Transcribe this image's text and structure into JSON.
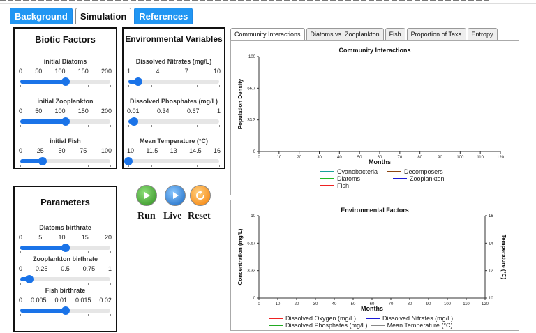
{
  "nav": {
    "tabs": [
      "Background",
      "Simulation",
      "References"
    ]
  },
  "biotic": {
    "title": "Biotic Factors",
    "sliders": [
      {
        "label": "initial Diatoms",
        "ticks": [
          "0",
          "50",
          "100",
          "150",
          "200"
        ],
        "value": 0.5
      },
      {
        "label": "initial Zooplankton",
        "ticks": [
          "0",
          "50",
          "100",
          "150",
          "200"
        ],
        "value": 0.5
      },
      {
        "label": "initial Fish",
        "ticks": [
          "0",
          "25",
          "50",
          "75",
          "100"
        ],
        "value": 0.25
      }
    ]
  },
  "env": {
    "title": "Environmental Variables",
    "sliders": [
      {
        "label": "Dissolved Nitrates (mg/L)",
        "ticks": [
          "1",
          "4",
          "7",
          "10"
        ],
        "value": 0.11
      },
      {
        "label": "Dissolved Phosphates (mg/L)",
        "ticks": [
          "0.01",
          "0.34",
          "0.67",
          "1"
        ],
        "value": 0.06
      },
      {
        "label": "Mean Temperature (°C)",
        "ticks": [
          "10",
          "11.5",
          "13",
          "14.5",
          "16"
        ],
        "value": 0.0
      }
    ]
  },
  "params": {
    "title": "Parameters",
    "sliders": [
      {
        "label": "Diatoms birthrate",
        "ticks": [
          "0",
          "5",
          "10",
          "15",
          "20"
        ],
        "value": 0.5
      },
      {
        "label": "Zooplankton birthrate",
        "ticks": [
          "0",
          "0.25",
          "0.5",
          "0.75",
          "1"
        ],
        "value": 0.1
      },
      {
        "label": "Fish birthrate",
        "ticks": [
          "0",
          "0.005",
          "0.01",
          "0.015",
          "0.02"
        ],
        "value": 0.5
      }
    ]
  },
  "controls": {
    "run": "Run",
    "live": "Live",
    "reset": "Reset"
  },
  "chart_tabs": [
    "Community Interactions",
    "Diatoms vs. Zooplankton",
    "Fish",
    "Proportion of Taxa",
    "Entropy"
  ],
  "colors": {
    "cyanobacteria": "#1aa39a",
    "decomposers": "#8b4513",
    "diatoms": "#22bb22",
    "zooplankton": "#1a1ad6",
    "fish": "#ee2222",
    "oxygen": "#ee2222",
    "nitrates": "#1a1ad6",
    "phosphates": "#22aa22",
    "temperature": "#888888",
    "accent": "#1a73e8"
  },
  "chart_data": [
    {
      "type": "line",
      "title": "Community Interactions",
      "xlabel": "Months",
      "ylabel": "Population Density",
      "xlim": [
        0,
        120
      ],
      "ylim": [
        0,
        100
      ],
      "xticks": [
        "0",
        "10",
        "20",
        "30",
        "40",
        "50",
        "60",
        "70",
        "80",
        "90",
        "100",
        "110",
        "120"
      ],
      "yticks": [
        "0",
        "33.3",
        "66.7",
        "100"
      ],
      "series": [
        {
          "name": "Cyanobacteria",
          "values": []
        },
        {
          "name": "Decomposers",
          "values": []
        },
        {
          "name": "Diatoms",
          "values": []
        },
        {
          "name": "Zooplankton",
          "values": []
        },
        {
          "name": "Fish",
          "values": []
        }
      ]
    },
    {
      "type": "line",
      "title": "Environmental Factors",
      "xlabel": "Months",
      "ylabel": "Concentration (mg/L)",
      "y2label": "Temperature (°C)",
      "xlim": [
        0,
        120
      ],
      "ylim": [
        0,
        10
      ],
      "y2lim": [
        10,
        16
      ],
      "xticks": [
        "0",
        "10",
        "20",
        "30",
        "40",
        "50",
        "60",
        "70",
        "80",
        "90",
        "100",
        "110",
        "120"
      ],
      "yticks": [
        "0",
        "3.33",
        "6.67",
        "10"
      ],
      "y2ticks": [
        "10",
        "12",
        "14",
        "16"
      ],
      "series": [
        {
          "name": "Dissolved Oxygen (mg/L)",
          "values": []
        },
        {
          "name": "Dissolved Nitrates (mg/L)",
          "values": []
        },
        {
          "name": "Dissolved Phosphates (mg/L)",
          "values": []
        },
        {
          "name": "Mean Temperature (°C)",
          "values": []
        }
      ]
    }
  ]
}
